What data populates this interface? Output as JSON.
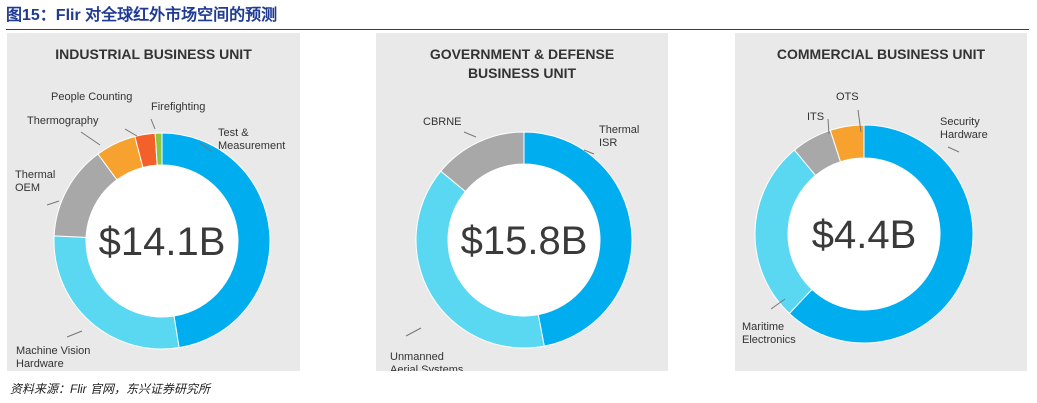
{
  "figure": {
    "title": "图15：Flir 对全球红外市场空间的预测",
    "source": "资料来源：Flir 官网，东兴证券研究所"
  },
  "chart_data": [
    {
      "type": "pie",
      "title": "INDUSTRIAL BUSINESS UNIT",
      "center_label": "$14.1B",
      "categories": [
        "Test & Measurement",
        "Machine Vision Hardware",
        "Thermal OEM",
        "Thermography",
        "People Counting",
        "Firefighting"
      ],
      "values": [
        47,
        28,
        14,
        6,
        3,
        1
      ],
      "colors": [
        "#00adef",
        "#5ad8f2",
        "#a8a8a8",
        "#f7a12e",
        "#f4602a",
        "#8dc63f"
      ]
    },
    {
      "type": "pie",
      "title": "GOVERNMENT & DEFENSE\nBUSINESS UNIT",
      "center_label": "$15.8B",
      "categories": [
        "Thermal ISR",
        "Unmanned Aerial Systems",
        "CBRNE"
      ],
      "values": [
        47,
        39,
        14
      ],
      "colors": [
        "#00adef",
        "#5ad8f2",
        "#a8a8a8"
      ]
    },
    {
      "type": "pie",
      "title": "COMMERCIAL BUSINESS UNIT",
      "center_label": "$4.4B",
      "categories": [
        "Security Hardware",
        "Maritime Electronics",
        "ITS",
        "OTS"
      ],
      "values": [
        62,
        27,
        6,
        5
      ],
      "colors": [
        "#00adef",
        "#5ad8f2",
        "#a8a8a8",
        "#f7a12e"
      ]
    }
  ]
}
